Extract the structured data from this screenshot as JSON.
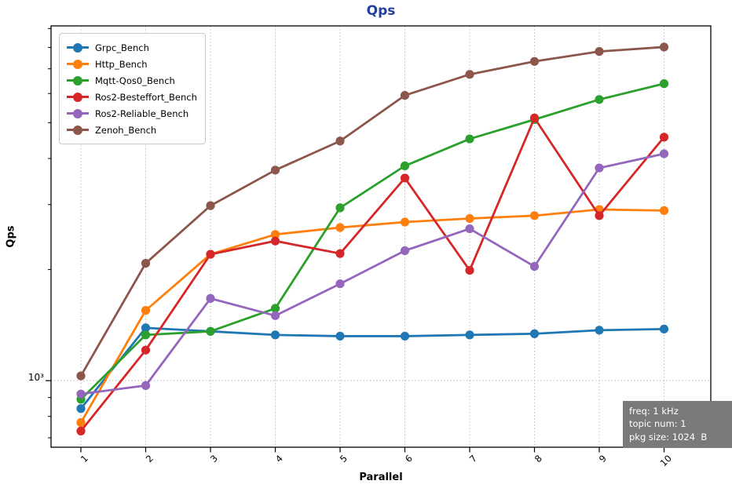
{
  "chart_data": {
    "type": "line",
    "title": "Qps",
    "title_color": "#21409f",
    "xlabel": "Parallel",
    "ylabel": "Qps",
    "yscale": "log",
    "ylim": [
      660,
      9150
    ],
    "ytick_label": "10³",
    "ytick_value": 1000,
    "grid": "dashed",
    "legend_position": "upper left",
    "x": [
      1,
      2,
      3,
      4,
      5,
      6,
      7,
      8,
      9,
      10
    ],
    "xtick_labels": [
      "1",
      "2",
      "3",
      "4",
      "5",
      "6",
      "7",
      "8",
      "9",
      "10"
    ],
    "series": [
      {
        "name": "Grpc_Bench",
        "color": "#1f77b4",
        "values": [
          840,
          1390,
          1360,
          1330,
          1320,
          1320,
          1330,
          1340,
          1370,
          1380
        ]
      },
      {
        "name": "Http_Bench",
        "color": "#ff7f0e",
        "values": [
          770,
          1550,
          2200,
          2490,
          2600,
          2690,
          2750,
          2800,
          2910,
          2890
        ]
      },
      {
        "name": "Mqtt-Qos0_Bench",
        "color": "#2ca02c",
        "values": [
          890,
          1330,
          1360,
          1570,
          2940,
          3820,
          4520,
          5100,
          5780,
          6380
        ]
      },
      {
        "name": "Ros2-Besteffort_Bench",
        "color": "#d62728",
        "values": [
          730,
          1210,
          2200,
          2390,
          2210,
          3540,
          1990,
          5150,
          2800,
          4570
        ]
      },
      {
        "name": "Ros2-Reliable_Bench",
        "color": "#9467bd",
        "values": [
          920,
          970,
          1670,
          1500,
          1830,
          2250,
          2580,
          2040,
          3770,
          4120
        ]
      },
      {
        "name": "Zenoh_Bench",
        "color": "#8c564b",
        "values": [
          1030,
          2080,
          2980,
          3720,
          4460,
          5930,
          6760,
          7330,
          7800,
          8020
        ]
      }
    ],
    "annotation_box": {
      "background": "#7a7a7a",
      "text_color": "#ffffff",
      "lines": [
        "freq: 1 kHz",
        "topic num: 1",
        "pkg size: 1024  B"
      ]
    }
  }
}
